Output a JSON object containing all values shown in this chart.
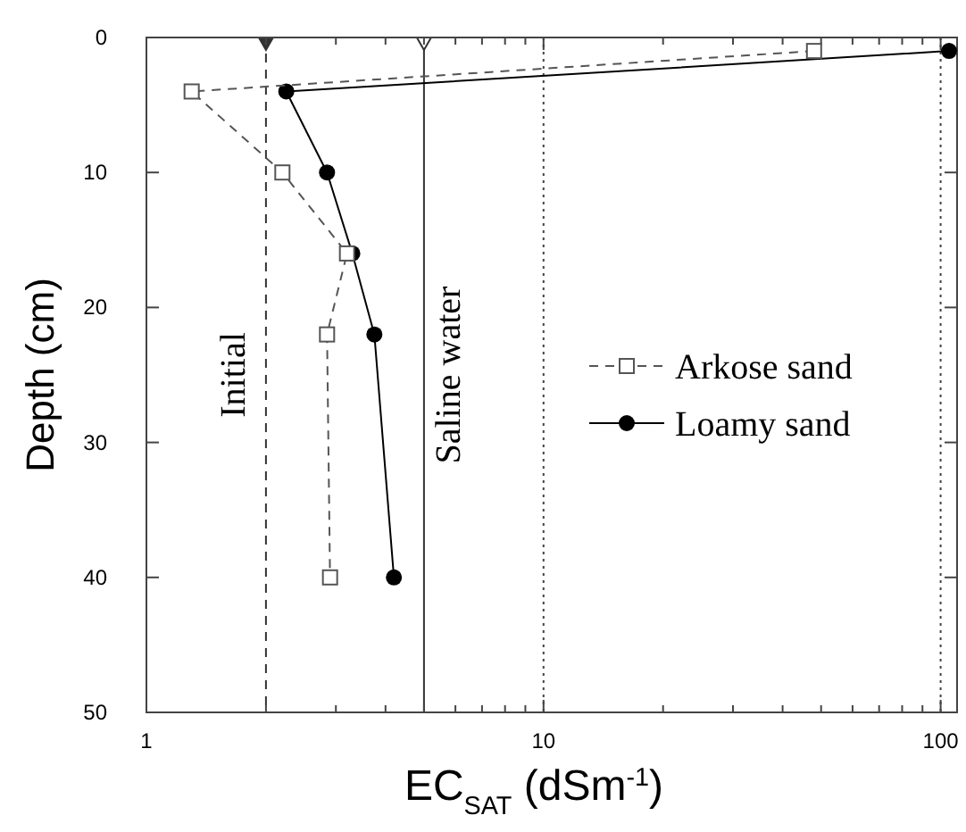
{
  "chart_data": {
    "type": "line",
    "xlabel": "EC$_{SAT}$ (dSm$^{-1}$)",
    "ylabel": "Depth (cm)",
    "log": "x",
    "xlim": [
      1,
      110
    ],
    "ylim": [
      50,
      0
    ],
    "xticks": [
      1,
      {
        "value": 2,
        "label": null
      },
      {
        "value": 3,
        "label": null
      },
      {
        "value": 4,
        "label": null
      },
      {
        "value": 5,
        "label": null
      },
      {
        "value": 6,
        "label": null
      },
      {
        "value": 7,
        "label": null
      },
      {
        "value": 8,
        "label": null
      },
      {
        "value": 9,
        "label": null
      },
      10,
      {
        "value": 20,
        "label": null
      },
      {
        "value": 30,
        "label": null
      },
      {
        "value": 40,
        "label": null
      },
      {
        "value": 50,
        "label": null
      },
      {
        "value": 60,
        "label": null
      },
      {
        "value": 70,
        "label": null
      },
      {
        "value": 80,
        "label": null
      },
      {
        "value": 90,
        "label": null
      },
      100
    ],
    "yticks": [
      0,
      10,
      20,
      30,
      40,
      50
    ],
    "grid": "x",
    "legend": "right",
    "series": [
      {
        "name": "Arkose sand",
        "color": "#555555",
        "marker": "square",
        "line_style": "dashed",
        "x": [
          48,
          1.3,
          2.2,
          3.2,
          2.85,
          2.9
        ],
        "values": [
          1,
          4,
          10,
          16,
          22,
          40
        ]
      },
      {
        "name": "Loamy sand",
        "color": "#000000",
        "marker": "circle",
        "line_style": "solid",
        "x": [
          105,
          2.25,
          2.85,
          3.3,
          3.75,
          4.2
        ],
        "values": [
          1,
          4,
          10,
          16,
          22,
          40
        ]
      }
    ],
    "ref_lines": [
      {
        "axis": "x",
        "value": 2,
        "label": "Initial",
        "line_style": "dashed",
        "color": "#333333"
      },
      {
        "axis": "x",
        "value": 5,
        "label": "Saline water",
        "line_style": "solid",
        "color": "#333333"
      }
    ]
  }
}
